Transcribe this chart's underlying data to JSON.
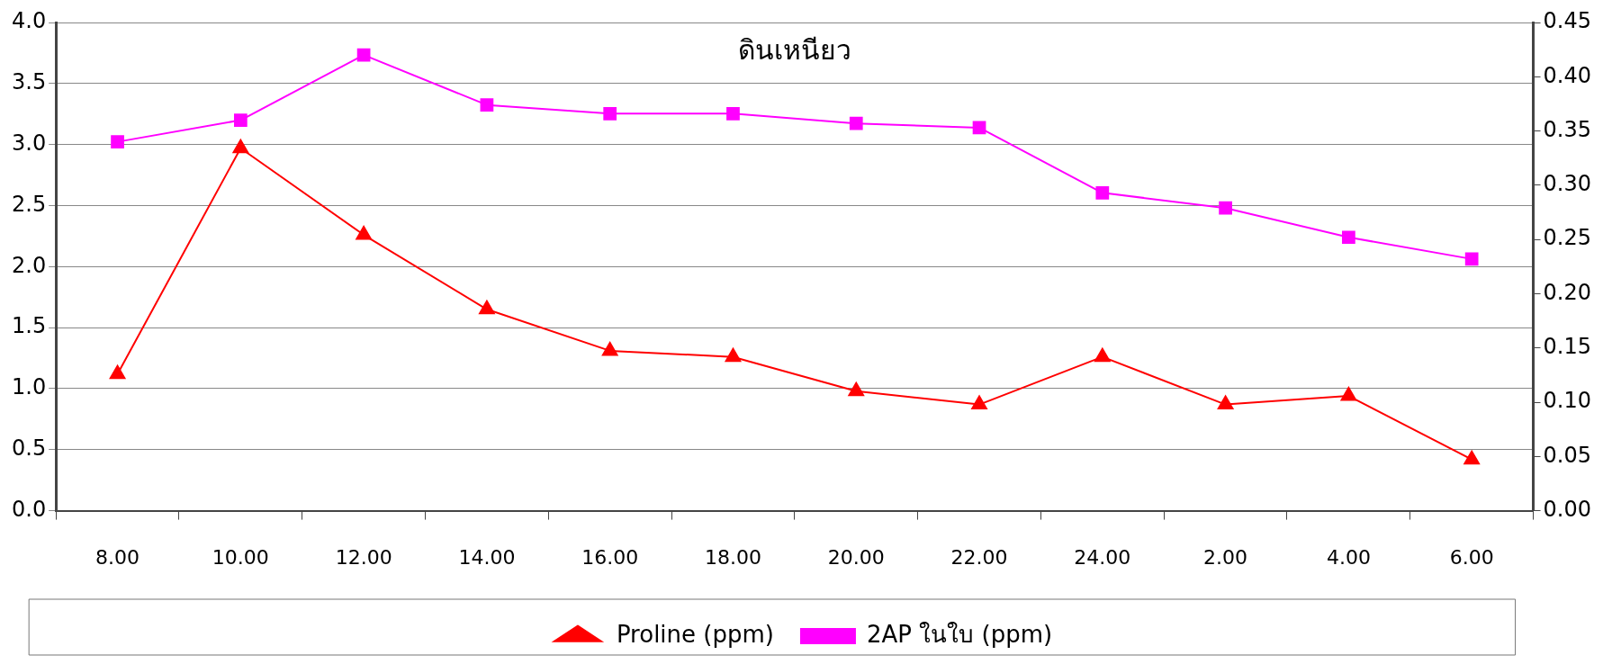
{
  "chart_data": {
    "type": "line",
    "title": "ดินเหนียว",
    "categories": [
      "8.00",
      "10.00",
      "12.00",
      "14.00",
      "16.00",
      "18.00",
      "20.00",
      "22.00",
      "24.00",
      "2.00",
      "4.00",
      "6.00"
    ],
    "series": [
      {
        "name": "Proline (ppm)",
        "color": "#ff0000",
        "marker": "triangle",
        "values": [
          1.12,
          2.97,
          2.26,
          1.65,
          1.31,
          1.26,
          0.98,
          0.87,
          1.26,
          0.87,
          0.94,
          0.42
        ]
      },
      {
        "name": "2AP ในใบ (ppm)",
        "color": "#ff00ff",
        "marker": "square",
        "axis": "y2",
        "values": [
          0.34,
          0.36,
          0.42,
          0.374,
          0.366,
          0.366,
          0.357,
          0.353,
          0.293,
          0.279,
          0.252,
          0.232
        ]
      }
    ],
    "ylim": [
      0,
      4
    ],
    "yticks": [
      {
        "value": 0,
        "label": "0.0"
      },
      {
        "value": 0.5,
        "label": "0.5"
      },
      {
        "value": 1,
        "label": "1.0"
      },
      {
        "value": 1.5,
        "label": "1.5"
      },
      {
        "value": 2,
        "label": "2.0"
      },
      {
        "value": 2.5,
        "label": "2.5"
      },
      {
        "value": 3,
        "label": "3.0"
      },
      {
        "value": 3.5,
        "label": "3.5"
      },
      {
        "value": 4,
        "label": "4.0"
      }
    ],
    "y2lim": [
      0,
      0.45
    ],
    "y2ticks": [
      {
        "value": 0,
        "label": "0.00"
      },
      {
        "value": 0.05,
        "label": "0.05"
      },
      {
        "value": 0.1,
        "label": "0.10"
      },
      {
        "value": 0.15,
        "label": "0.15"
      },
      {
        "value": 0.2,
        "label": "0.20"
      },
      {
        "value": 0.25,
        "label": "0.25"
      },
      {
        "value": 0.3,
        "label": "0.30"
      },
      {
        "value": 0.35,
        "label": "0.35"
      },
      {
        "value": 0.4,
        "label": "0.40"
      },
      {
        "value": 0.45,
        "label": "0.45"
      }
    ],
    "grid": "y",
    "legend": "bottom",
    "line_style": "solid"
  }
}
